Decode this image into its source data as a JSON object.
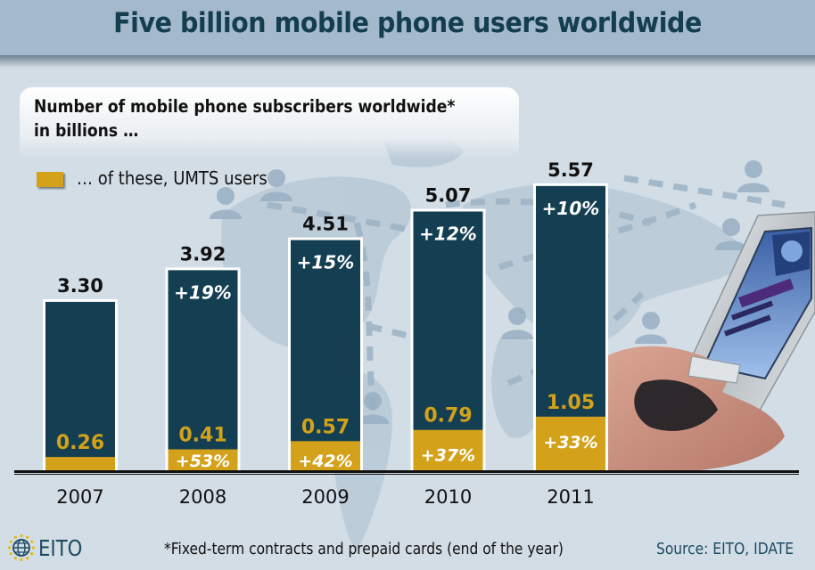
{
  "header": {
    "title": "Five billion mobile phone users worldwide"
  },
  "subtitle": {
    "line1": "Number of mobile phone subscribers worldwide*",
    "line2": "in billions …"
  },
  "legend": {
    "umts_label": "… of these, UMTS users",
    "umts_color": "#d3a11a"
  },
  "footer": {
    "footnote": "*Fixed-term contracts and prepaid cards (end of the year)",
    "source": "Source: EITO, IDATE",
    "logo_text": "EITO",
    "logo_icon": "globe-with-stars-icon"
  },
  "illustration": {
    "phone_icon": "hand-holding-mobile-phone-icon",
    "map_icon": "world-map-with-people-icon"
  },
  "colors": {
    "total_bar": "#143f52",
    "umts_bar": "#d3a11a",
    "bar_outline": "#ffffff",
    "title": "#143e50",
    "header_band": "#a4b9cc",
    "background": "#d2dde6"
  },
  "chart_data": {
    "type": "bar",
    "title": "Number of mobile phone subscribers worldwide* in billions …",
    "xlabel": "",
    "ylabel": "billions",
    "categories": [
      "2007",
      "2008",
      "2009",
      "2010",
      "2011"
    ],
    "series": [
      {
        "name": "Mobile phone subscribers",
        "values": [
          3.3,
          3.92,
          4.51,
          5.07,
          5.57
        ],
        "labels": [
          "3.30",
          "3.92",
          "4.51",
          "5.07",
          "5.57"
        ],
        "growth": [
          "",
          "+19%",
          "+15%",
          "+12%",
          "+10%"
        ]
      },
      {
        "name": "… of these, UMTS users",
        "values": [
          0.26,
          0.41,
          0.57,
          0.79,
          1.05
        ],
        "labels": [
          "0.26",
          "0.41",
          "0.57",
          "0.79",
          "1.05"
        ],
        "growth": [
          "",
          "+53%",
          "+42%",
          "+37%",
          "+33%"
        ]
      }
    ],
    "ylim": [
      0,
      6
    ],
    "grid": false,
    "legend_position": "top-left"
  }
}
